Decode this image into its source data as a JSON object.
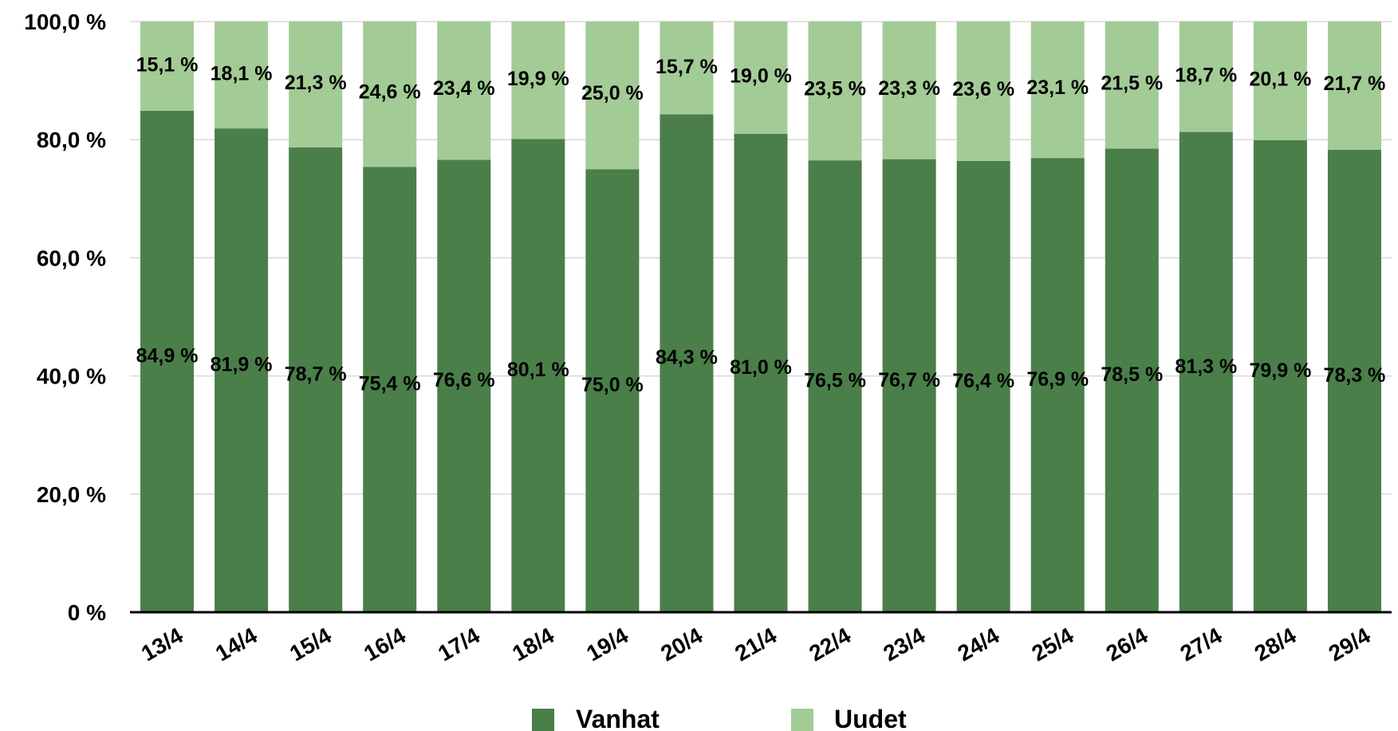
{
  "chart_data": {
    "type": "bar",
    "stacked": true,
    "percent": true,
    "categories": [
      "13/4",
      "14/4",
      "15/4",
      "16/4",
      "17/4",
      "18/4",
      "19/4",
      "20/4",
      "21/4",
      "22/4",
      "23/4",
      "24/4",
      "25/4",
      "26/4",
      "27/4",
      "28/4",
      "29/4"
    ],
    "series": [
      {
        "name": "Vanhat",
        "color": "#4a7f4a",
        "values": [
          84.9,
          81.9,
          78.7,
          75.4,
          76.6,
          80.1,
          75.0,
          84.3,
          81.0,
          76.5,
          76.7,
          76.4,
          76.9,
          78.5,
          81.3,
          79.9,
          78.3
        ],
        "labels": [
          "84,9 %",
          "81,9 %",
          "78,7 %",
          "75,4 %",
          "76,6 %",
          "80,1 %",
          "75,0 %",
          "84,3 %",
          "81,0 %",
          "76,5 %",
          "76,7 %",
          "76,4 %",
          "76,9 %",
          "78,5 %",
          "81,3 %",
          "79,9 %",
          "78,3 %"
        ]
      },
      {
        "name": "Uudet",
        "color": "#a3cb96",
        "values": [
          15.1,
          18.1,
          21.3,
          24.6,
          23.4,
          19.9,
          25.0,
          15.7,
          19.0,
          23.5,
          23.3,
          23.6,
          23.1,
          21.5,
          18.7,
          20.1,
          21.7
        ],
        "labels": [
          "15,1 %",
          "18,1 %",
          "21,3 %",
          "24,6 %",
          "23,4 %",
          "19,9 %",
          "25,0 %",
          "15,7 %",
          "19,0 %",
          "23,5 %",
          "23,3 %",
          "23,6 %",
          "23,1 %",
          "21,5 %",
          "18,7 %",
          "20,1 %",
          "21,7 %"
        ]
      }
    ],
    "ylim": [
      0,
      100
    ],
    "y_ticks": [
      0,
      20,
      40,
      60,
      80,
      100
    ],
    "y_tick_labels": [
      "0 %",
      "20,0 %",
      "40,0 %",
      "60,0 %",
      "80,0 %",
      "100,0 %"
    ],
    "grid": true,
    "legend": "bottom",
    "title": "",
    "xlabel": "",
    "ylabel": ""
  }
}
